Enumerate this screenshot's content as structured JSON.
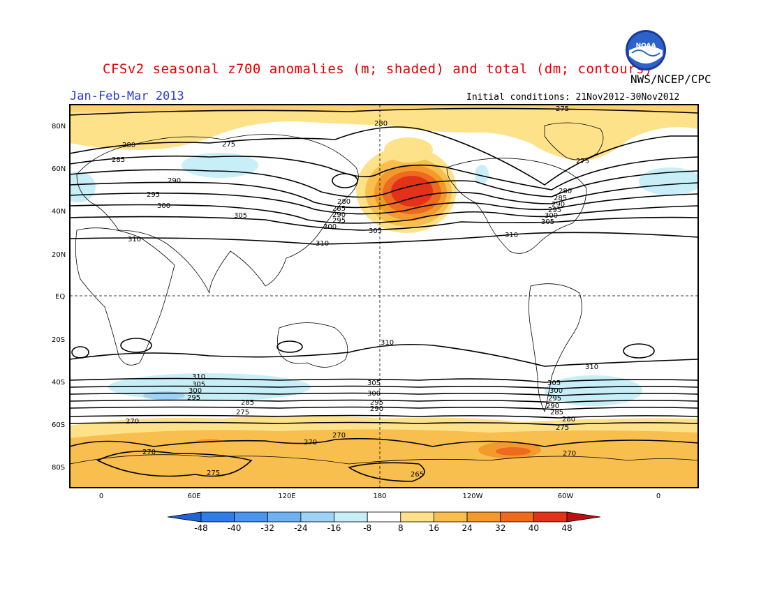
{
  "header": {
    "title": "CFSv2 seasonal z700 anomalies (m; shaded) and total (dm; contours)",
    "credit": "NWS/NCEP/CPC",
    "period": "Jan-Feb-Mar 2013",
    "initial_conditions": "Initial conditions: 21Nov2012-30Nov2012",
    "logo_text": "NOAA"
  },
  "map": {
    "lat_labels": [
      "80N",
      "60N",
      "40N",
      "20N",
      "EQ",
      "20S",
      "40S",
      "60S",
      "80S"
    ],
    "lon_labels": [
      "0",
      "60E",
      "120E",
      "180",
      "120W",
      "60W",
      "0"
    ],
    "contour_labels": [
      {
        "text": "275"
      },
      {
        "text": "280"
      },
      {
        "text": "285"
      },
      {
        "text": "290"
      },
      {
        "text": "295"
      },
      {
        "text": "300"
      },
      {
        "text": "305"
      },
      {
        "text": "310"
      },
      {
        "text": "270"
      },
      {
        "text": "265"
      }
    ]
  },
  "colorbar": {
    "ticks": [
      "-48",
      "-40",
      "-32",
      "-24",
      "-16",
      "-8",
      "8",
      "16",
      "24",
      "32",
      "40",
      "48"
    ],
    "colors": [
      "#1e64d8",
      "#2f7de6",
      "#4a96ec",
      "#6fb2f2",
      "#9fd3f5",
      "#c8eef8",
      "#ffffff",
      "#fde28a",
      "#f9bf4e",
      "#f49a2c",
      "#ee6a1e",
      "#e2331a",
      "#bf0f10"
    ]
  },
  "colors": {
    "title": "#e00000",
    "period": "#2a3bd6"
  }
}
